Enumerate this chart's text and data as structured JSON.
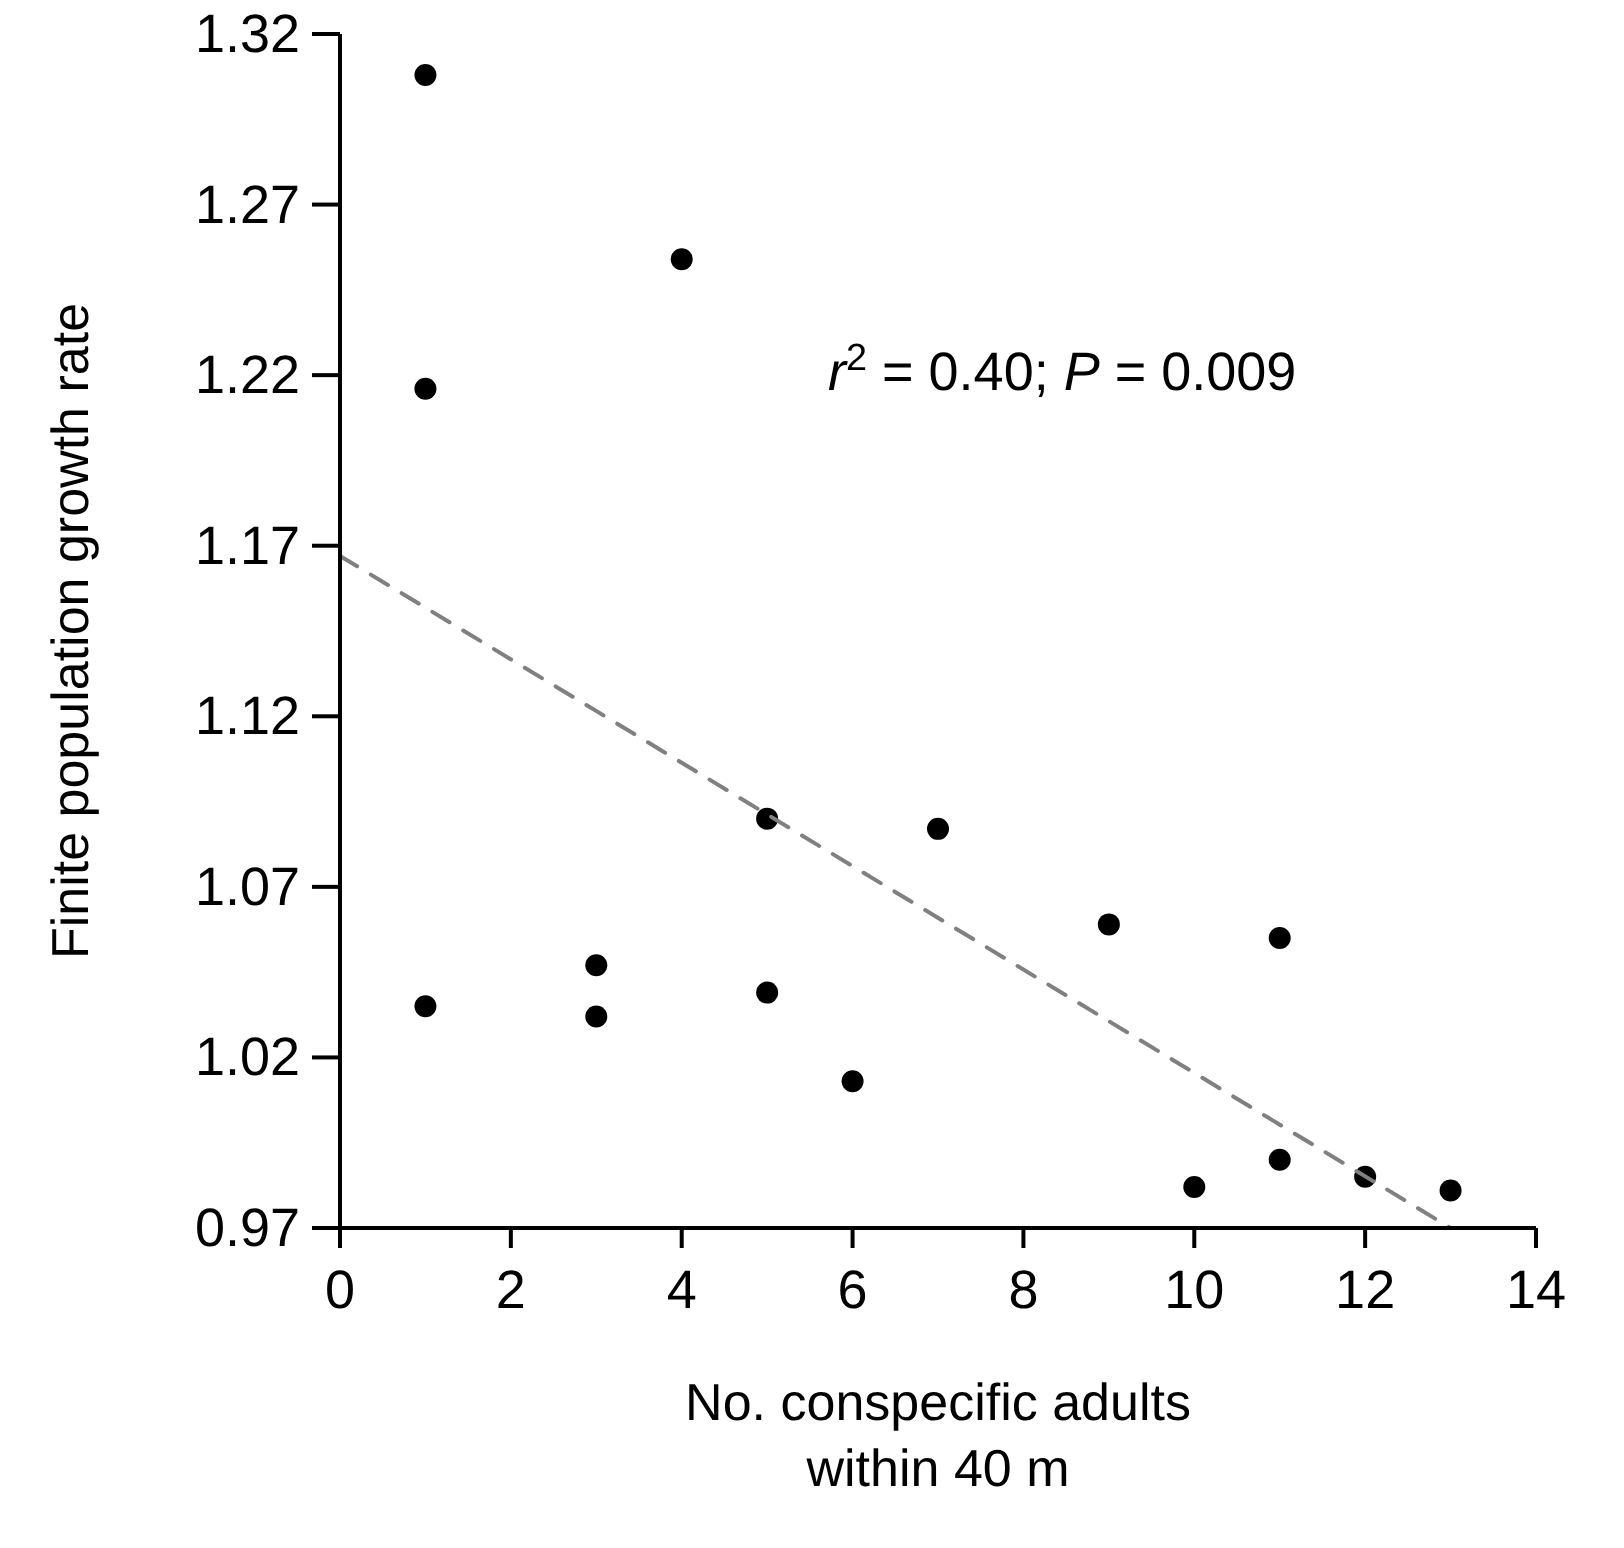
{
  "chart_data": {
    "type": "scatter",
    "xlabel": "No. conspecific adults\nwithin 40 m",
    "ylabel": "Finite population growth rate",
    "xlim": [
      0,
      14
    ],
    "xticks": [
      0,
      2,
      4,
      6,
      8,
      10,
      12,
      14
    ],
    "ylim": [
      0.97,
      1.32
    ],
    "yticks": [
      0.97,
      1.02,
      1.07,
      1.12,
      1.17,
      1.22,
      1.27,
      1.32
    ],
    "grid": false,
    "annotations": [
      "r$^{2}$ = 0.40; P = 0.009"
    ],
    "series": [
      {
        "color": "#000000",
        "marker": "circle",
        "x": [
          1,
          1,
          1,
          3,
          3,
          4,
          5,
          5,
          6,
          7,
          9,
          10,
          11,
          11,
          12,
          13
        ],
        "values": [
          1.308,
          1.216,
          1.035,
          1.047,
          1.032,
          1.254,
          1.09,
          1.039,
          1.013,
          1.087,
          1.059,
          0.982,
          1.055,
          0.99,
          0.985,
          0.981
        ]
      },
      {
        "type": "line",
        "color": "#808080",
        "line_style": "dashed",
        "marker": "none",
        "x": [
          0,
          13
        ],
        "values": [
          1.167,
          0.97
        ]
      }
    ]
  }
}
